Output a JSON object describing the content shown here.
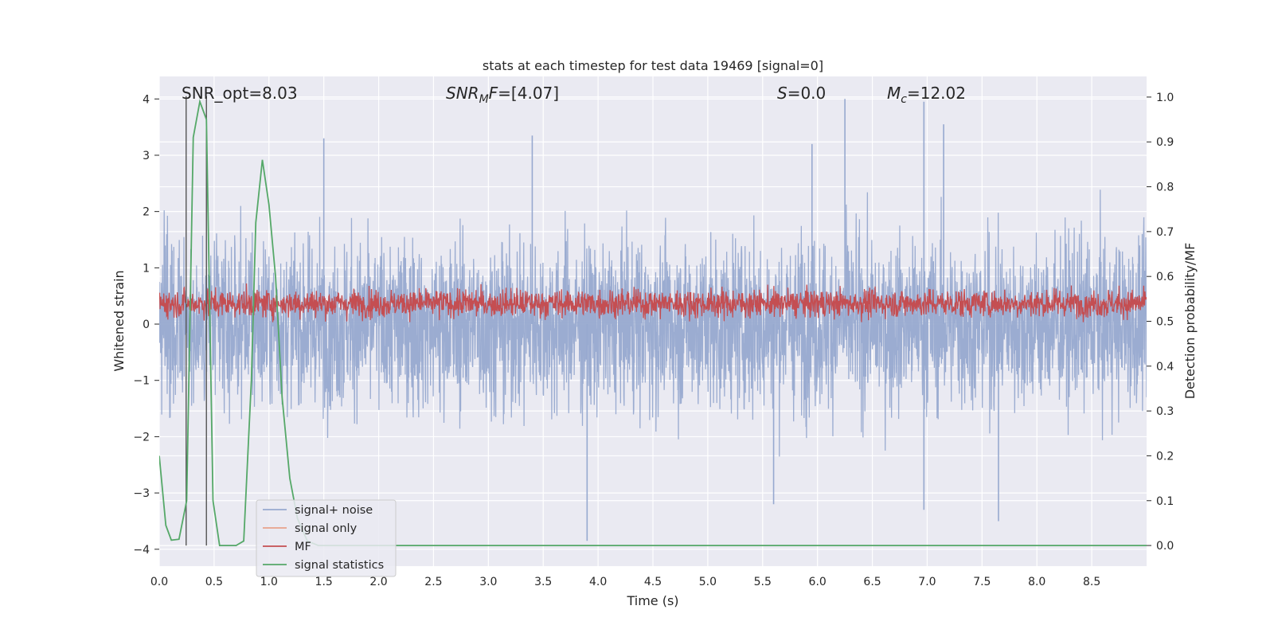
{
  "chart_data": {
    "type": "line",
    "title": "stats at each timestep for test data 19469 [signal=0]",
    "xlabel": "Time (s)",
    "ylabel_left": "Whitened strain",
    "ylabel_right": "Detection probability/MF",
    "xlim": [
      0.0,
      9.0
    ],
    "ylim_left": [
      -4.3,
      4.4
    ],
    "ylim_right": [
      -0.046,
      1.046
    ],
    "x_ticks": [
      "0.0",
      "0.5",
      "1.0",
      "1.5",
      "2.0",
      "2.5",
      "3.0",
      "3.5",
      "4.0",
      "4.5",
      "5.0",
      "5.5",
      "6.0",
      "6.5",
      "7.0",
      "7.5",
      "8.0",
      "8.5"
    ],
    "y_left_ticks": [
      "−4",
      "−3",
      "−2",
      "−1",
      "0",
      "1",
      "2",
      "3",
      "4"
    ],
    "y_right_ticks": [
      "0.0",
      "0.1",
      "0.2",
      "0.3",
      "0.4",
      "0.5",
      "0.6",
      "0.7",
      "0.8",
      "0.9",
      "1.0"
    ],
    "grid": true,
    "legend_position": "lower-left",
    "annotations": {
      "snr_opt": "SNR_opt=8.03",
      "snr_mf_name": "SNR",
      "snr_mf_sub": "M",
      "snr_mf_suffix": "F",
      "snr_mf_value": "=[4.07]",
      "s_name": "S",
      "s_value": "=0.0",
      "mc_name": "M",
      "mc_sub": "c",
      "mc_value": "=12.02"
    },
    "vlines": [
      0.245,
      0.43
    ],
    "series": [
      {
        "name": "signal+ noise",
        "color": "#97a9cf",
        "axis": "left",
        "noise_x_range": [
          0.0,
          9.0
        ],
        "typical_range": [
          -2.6,
          2.6
        ],
        "notable_peaks": [
          {
            "x": 1.5,
            "y": 3.3
          },
          {
            "x": 3.4,
            "y": 3.35
          },
          {
            "x": 6.25,
            "y": 4.0
          },
          {
            "x": 6.97,
            "y": 3.95
          },
          {
            "x": 7.15,
            "y": 3.55
          },
          {
            "x": 5.95,
            "y": 3.2
          },
          {
            "x": 3.9,
            "y": -3.85
          },
          {
            "x": 7.65,
            "y": -3.5
          },
          {
            "x": 5.6,
            "y": -3.2
          },
          {
            "x": 6.97,
            "y": -3.3
          }
        ]
      },
      {
        "name": "signal only",
        "color": "#e8a28b",
        "axis": "left",
        "values_note": ""
      },
      {
        "name": "MF",
        "color": "#c44e52",
        "axis": "right",
        "typical_range": [
          0.5,
          0.58
        ]
      },
      {
        "name": "signal statistics",
        "color": "#55a868",
        "axis": "right",
        "x": [
          0.0,
          0.06,
          0.11,
          0.18,
          0.25,
          0.31,
          0.37,
          0.43,
          0.49,
          0.55,
          0.6,
          0.7,
          0.77,
          0.84,
          0.88,
          0.94,
          1.0,
          1.06,
          1.12,
          1.19,
          1.26,
          1.35,
          1.45,
          1.55,
          9.0
        ],
        "y": [
          0.2,
          0.045,
          0.012,
          0.014,
          0.1,
          0.91,
          0.99,
          0.95,
          0.1,
          0.0,
          0.0,
          0.0,
          0.01,
          0.37,
          0.72,
          0.86,
          0.76,
          0.6,
          0.33,
          0.15,
          0.06,
          0.01,
          0.0,
          0.0,
          0.0
        ]
      }
    ]
  }
}
